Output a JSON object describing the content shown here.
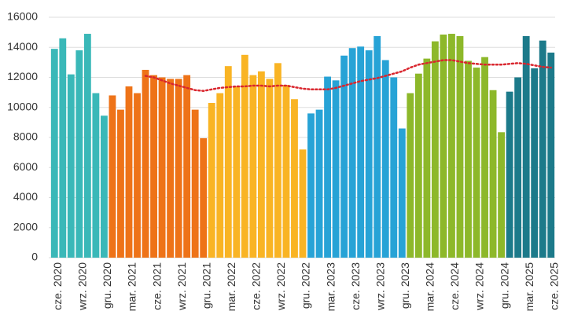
{
  "chart_data": {
    "type": "bar",
    "categories": [
      "cze. 2020",
      null,
      null,
      "wrz. 2020",
      null,
      null,
      "gru. 2020",
      null,
      null,
      "mar. 2021",
      null,
      null,
      "cze. 2021",
      null,
      null,
      "wrz. 2021",
      null,
      null,
      "gru. 2021",
      null,
      null,
      "mar. 2022",
      null,
      null,
      "cze. 2022",
      null,
      null,
      "wrz. 2022",
      null,
      null,
      "gru. 2022",
      null,
      null,
      "mar. 2023",
      null,
      null,
      "cze. 2023",
      null,
      null,
      "wrz. 2023",
      null,
      null,
      "gru. 2023",
      null,
      null,
      "mar. 2024",
      null,
      null,
      "cze. 2024",
      null,
      null,
      "wrz. 2024",
      null,
      null,
      "gru. 2024",
      null,
      null,
      "mar. 2025",
      null,
      null,
      "cze. 2025"
    ],
    "values": [
      13900,
      14600,
      12200,
      13800,
      14900,
      10950,
      9450,
      10800,
      9850,
      11400,
      10950,
      12500,
      12150,
      12000,
      11900,
      11900,
      12150,
      9850,
      7950,
      10300,
      10950,
      12750,
      11400,
      13500,
      12150,
      12400,
      11900,
      12950,
      11500,
      10550,
      7200,
      9600,
      9850,
      12050,
      11800,
      13450,
      13950,
      14050,
      13800,
      14750,
      13150,
      12000,
      8600,
      10950,
      12250,
      13250,
      14400,
      14850,
      14900,
      14750,
      13100,
      12650,
      13350,
      11150,
      8350,
      11050,
      12000,
      14750,
      12600,
      14450,
      13650
    ],
    "colors": [
      "#3ab8b8",
      "#3ab8b8",
      "#3ab8b8",
      "#3ab8b8",
      "#3ab8b8",
      "#3ab8b8",
      "#3ab8b8",
      "#ee7318",
      "#ee7318",
      "#ee7318",
      "#ee7318",
      "#ee7318",
      "#ee7318",
      "#ee7318",
      "#ee7318",
      "#ee7318",
      "#ee7318",
      "#ee7318",
      "#ee7318",
      "#f9b424",
      "#f9b424",
      "#f9b424",
      "#f9b424",
      "#f9b424",
      "#f9b424",
      "#f9b424",
      "#f9b424",
      "#f9b424",
      "#f9b424",
      "#f9b424",
      "#f9b424",
      "#27a3d6",
      "#27a3d6",
      "#27a3d6",
      "#27a3d6",
      "#27a3d6",
      "#27a3d6",
      "#27a3d6",
      "#27a3d6",
      "#27a3d6",
      "#27a3d6",
      "#27a3d6",
      "#27a3d6",
      "#8db82a",
      "#8db82a",
      "#8db82a",
      "#8db82a",
      "#8db82a",
      "#8db82a",
      "#8db82a",
      "#8db82a",
      "#8db82a",
      "#8db82a",
      "#8db82a",
      "#8db82a",
      "#1c7a8a",
      "#1c7a8a",
      "#1c7a8a",
      "#1c7a8a",
      "#1c7a8a",
      "#1c7a8a"
    ],
    "trend": {
      "color": "#d9262e",
      "values": [
        null,
        null,
        null,
        null,
        null,
        null,
        null,
        null,
        null,
        null,
        null,
        12100,
        12000,
        11800,
        11600,
        11450,
        11300,
        11150,
        11100,
        11200,
        11300,
        11350,
        11400,
        11400,
        11450,
        11450,
        11400,
        11450,
        11450,
        11350,
        11250,
        11200,
        11200,
        11200,
        11300,
        11450,
        11600,
        11750,
        11850,
        11950,
        12100,
        12250,
        12400,
        12650,
        12850,
        12950,
        13050,
        13150,
        13150,
        13050,
        12950,
        12900,
        12850,
        12850,
        12850,
        12900,
        12950,
        12900,
        12800,
        12700,
        12650
      ]
    },
    "ylim": [
      0,
      16000
    ],
    "yticks": [
      0,
      2000,
      4000,
      6000,
      8000,
      10000,
      12000,
      14000,
      16000
    ],
    "grid": true
  }
}
